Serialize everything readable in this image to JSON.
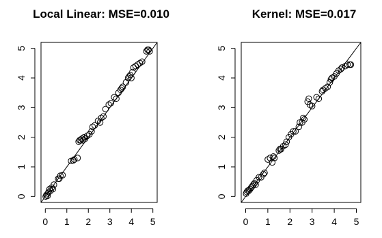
{
  "chart_data": [
    {
      "type": "scatter",
      "title": "Local Linear: MSE=0.010",
      "xlabel": "",
      "ylabel": "",
      "xlim": [
        -0.2,
        5.2
      ],
      "ylim": [
        -0.2,
        5.2
      ],
      "x_ticks": [
        "0",
        "1",
        "2",
        "3",
        "4",
        "5"
      ],
      "y_ticks": [
        "0",
        "1",
        "2",
        "3",
        "4",
        "5"
      ],
      "reference_line": "y = x",
      "grid": false,
      "points": [
        [
          0.02,
          0.0
        ],
        [
          0.05,
          0.05
        ],
        [
          0.1,
          0.02
        ],
        [
          0.12,
          0.1
        ],
        [
          0.15,
          0.15
        ],
        [
          0.2,
          0.25
        ],
        [
          0.25,
          0.2
        ],
        [
          0.3,
          0.3
        ],
        [
          0.35,
          0.25
        ],
        [
          0.4,
          0.4
        ],
        [
          0.6,
          0.6
        ],
        [
          0.65,
          0.6
        ],
        [
          0.7,
          0.7
        ],
        [
          0.8,
          0.72
        ],
        [
          1.2,
          1.2
        ],
        [
          1.3,
          1.22
        ],
        [
          1.35,
          1.25
        ],
        [
          1.5,
          1.3
        ],
        [
          1.55,
          1.85
        ],
        [
          1.6,
          1.9
        ],
        [
          1.65,
          1.9
        ],
        [
          1.7,
          1.95
        ],
        [
          1.75,
          1.9
        ],
        [
          1.8,
          2.0
        ],
        [
          1.85,
          1.95
        ],
        [
          1.95,
          2.05
        ],
        [
          2.05,
          2.1
        ],
        [
          2.15,
          2.2
        ],
        [
          2.2,
          2.35
        ],
        [
          2.3,
          2.4
        ],
        [
          2.45,
          2.55
        ],
        [
          2.55,
          2.5
        ],
        [
          2.6,
          2.65
        ],
        [
          2.7,
          2.7
        ],
        [
          2.8,
          2.95
        ],
        [
          2.95,
          3.1
        ],
        [
          3.05,
          3.15
        ],
        [
          3.2,
          3.35
        ],
        [
          3.3,
          3.3
        ],
        [
          3.4,
          3.5
        ],
        [
          3.5,
          3.6
        ],
        [
          3.55,
          3.65
        ],
        [
          3.6,
          3.7
        ],
        [
          3.75,
          3.85
        ],
        [
          3.85,
          4.0
        ],
        [
          3.9,
          4.05
        ],
        [
          3.95,
          4.1
        ],
        [
          4.0,
          4.0
        ],
        [
          4.05,
          4.2
        ],
        [
          4.1,
          4.35
        ],
        [
          4.2,
          4.4
        ],
        [
          4.3,
          4.45
        ],
        [
          4.4,
          4.5
        ],
        [
          4.5,
          4.55
        ],
        [
          4.7,
          4.9
        ],
        [
          4.75,
          4.95
        ],
        [
          4.8,
          4.95
        ],
        [
          4.85,
          4.9
        ]
      ]
    },
    {
      "type": "scatter",
      "title": "Kernel: MSE=0.017",
      "xlabel": "",
      "ylabel": "",
      "xlim": [
        -0.2,
        5.2
      ],
      "ylim": [
        -0.2,
        5.2
      ],
      "x_ticks": [
        "0",
        "1",
        "2",
        "3",
        "4",
        "5"
      ],
      "y_ticks": [
        "0",
        "1",
        "2",
        "3",
        "4",
        "5"
      ],
      "reference_line": "y = x",
      "grid": false,
      "points": [
        [
          0.02,
          0.1
        ],
        [
          0.05,
          0.15
        ],
        [
          0.1,
          0.2
        ],
        [
          0.15,
          0.2
        ],
        [
          0.2,
          0.25
        ],
        [
          0.25,
          0.3
        ],
        [
          0.3,
          0.35
        ],
        [
          0.35,
          0.4
        ],
        [
          0.4,
          0.45
        ],
        [
          0.45,
          0.4
        ],
        [
          0.5,
          0.55
        ],
        [
          0.6,
          0.65
        ],
        [
          0.7,
          0.65
        ],
        [
          0.8,
          0.75
        ],
        [
          0.85,
          0.8
        ],
        [
          1.0,
          1.25
        ],
        [
          1.1,
          1.3
        ],
        [
          1.2,
          1.15
        ],
        [
          1.25,
          1.35
        ],
        [
          1.3,
          1.3
        ],
        [
          1.5,
          1.55
        ],
        [
          1.55,
          1.6
        ],
        [
          1.6,
          1.6
        ],
        [
          1.7,
          1.7
        ],
        [
          1.8,
          1.75
        ],
        [
          1.85,
          1.85
        ],
        [
          1.95,
          2.0
        ],
        [
          2.05,
          2.1
        ],
        [
          2.15,
          2.2
        ],
        [
          2.25,
          2.2
        ],
        [
          2.4,
          2.35
        ],
        [
          2.45,
          2.5
        ],
        [
          2.55,
          2.5
        ],
        [
          2.6,
          2.65
        ],
        [
          2.65,
          2.6
        ],
        [
          2.8,
          3.2
        ],
        [
          2.85,
          3.3
        ],
        [
          2.9,
          3.1
        ],
        [
          3.0,
          3.05
        ],
        [
          3.2,
          3.35
        ],
        [
          3.3,
          3.3
        ],
        [
          3.45,
          3.55
        ],
        [
          3.5,
          3.6
        ],
        [
          3.6,
          3.65
        ],
        [
          3.7,
          3.7
        ],
        [
          3.8,
          3.85
        ],
        [
          3.85,
          3.95
        ],
        [
          3.9,
          4.0
        ],
        [
          4.0,
          4.05
        ],
        [
          4.1,
          4.15
        ],
        [
          4.2,
          4.25
        ],
        [
          4.3,
          4.3
        ],
        [
          4.35,
          4.35
        ],
        [
          4.5,
          4.4
        ],
        [
          4.6,
          4.45
        ],
        [
          4.7,
          4.45
        ],
        [
          4.75,
          4.45
        ]
      ]
    }
  ]
}
